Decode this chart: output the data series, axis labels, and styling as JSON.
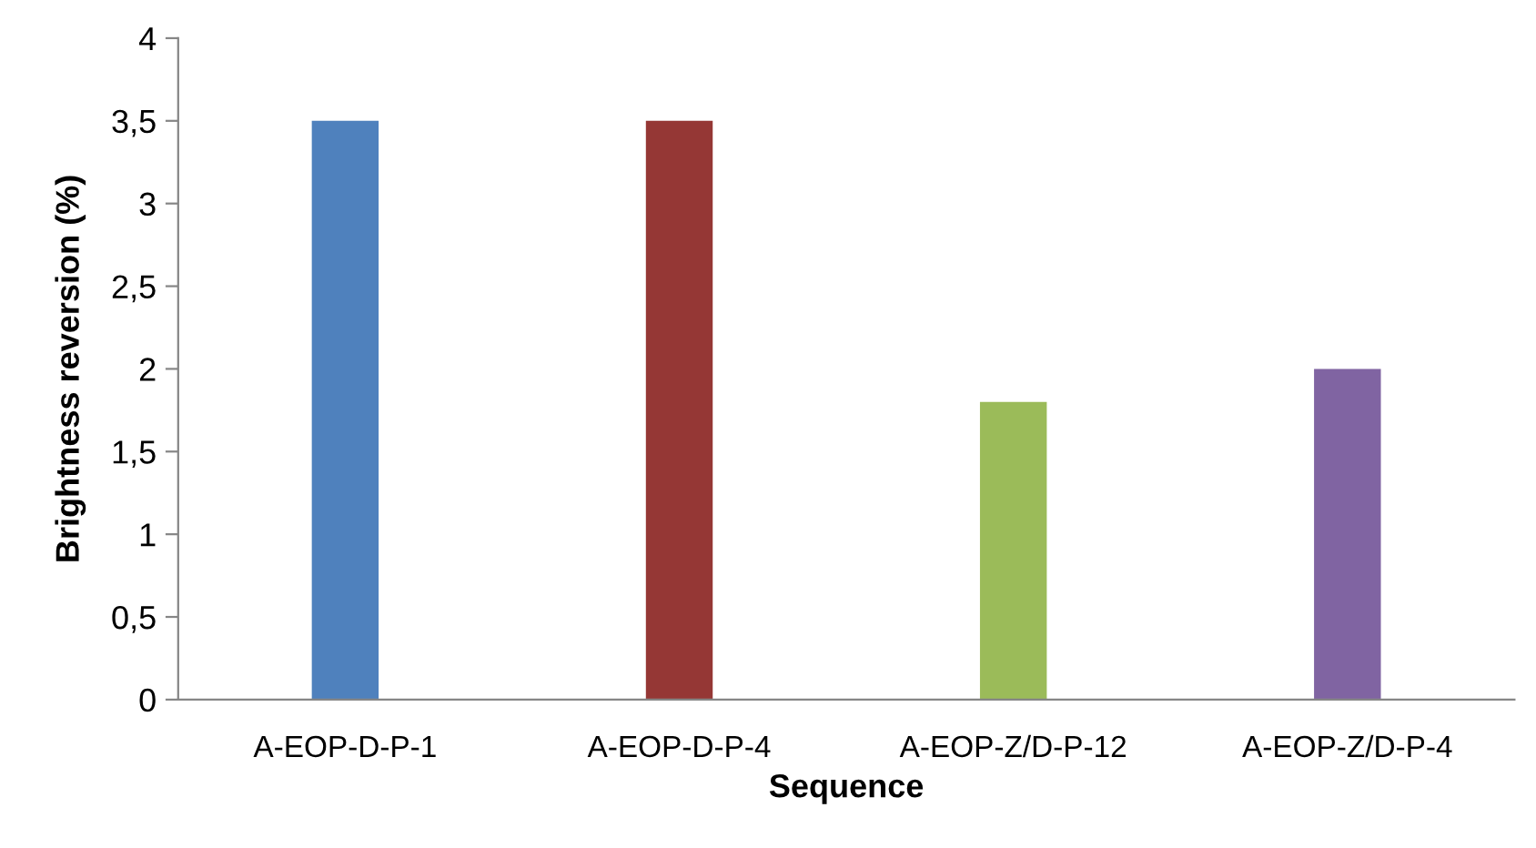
{
  "chart_data": {
    "type": "bar",
    "xlabel": "Sequence",
    "ylabel": "Brightness reversion (%)",
    "categories": [
      "A-EOP-D-P-1",
      "A-EOP-D-P-4",
      "A-EOP-Z/D-P-12",
      "A-EOP-Z/D-P-4"
    ],
    "values": [
      3.5,
      3.5,
      1.8,
      2.0
    ],
    "colors": [
      "#4f81bd",
      "#953735",
      "#9bbb59",
      "#8064a2"
    ],
    "ylim": [
      0,
      4
    ],
    "yticks": [
      0,
      {
        "value": 0.5,
        "label": "0,5"
      },
      1,
      {
        "value": 1.5,
        "label": "1,5"
      },
      2,
      {
        "value": 2.5,
        "label": "2,5"
      },
      3,
      {
        "value": 3.5,
        "label": "3,5"
      },
      4
    ],
    "grid": false
  }
}
